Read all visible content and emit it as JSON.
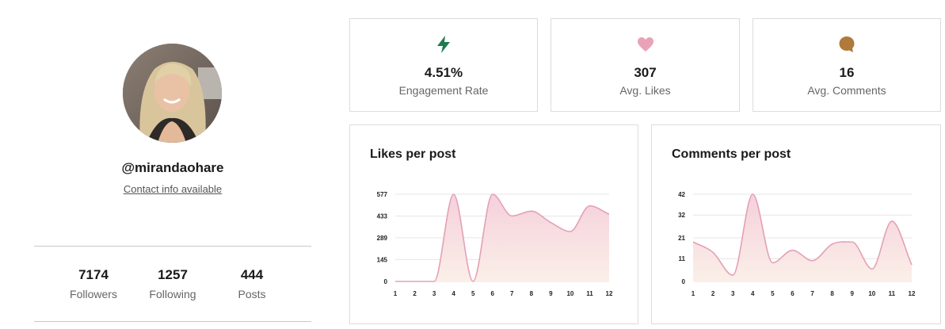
{
  "profile": {
    "handle": "@mirandaohare",
    "contact_link": "Contact info available",
    "stats": [
      {
        "value": "7174",
        "label": "Followers"
      },
      {
        "value": "1257",
        "label": "Following"
      },
      {
        "value": "444",
        "label": "Posts"
      }
    ]
  },
  "metrics": [
    {
      "value": "4.51%",
      "label": "Engagement Rate",
      "icon": "lightning-icon",
      "color": "#1e7a4f"
    },
    {
      "value": "307",
      "label": "Avg. Likes",
      "icon": "heart-icon",
      "color": "#e8a3b8"
    },
    {
      "value": "16",
      "label": "Avg. Comments",
      "icon": "comment-bubble-icon",
      "color": "#b07a3a"
    }
  ],
  "colors": {
    "series_line": "#e3a1b5",
    "series_fill_top": "#f5d0dc",
    "series_fill_bottom": "#fbefe8"
  },
  "chart_data": [
    {
      "type": "area",
      "title": "Likes per post",
      "x": [
        1,
        2,
        3,
        4,
        5,
        6,
        7,
        8,
        9,
        10,
        11,
        12
      ],
      "values": [
        0,
        0,
        0,
        577,
        0,
        577,
        433,
        465,
        390,
        330,
        500,
        445
      ],
      "yticks": [
        0,
        145,
        289,
        433,
        577
      ],
      "ylim": [
        0,
        577
      ],
      "grid": true
    },
    {
      "type": "area",
      "title": "Comments per post",
      "x": [
        1,
        2,
        3,
        4,
        5,
        6,
        7,
        8,
        9,
        10,
        11,
        12
      ],
      "values": [
        19,
        14,
        3,
        42,
        9,
        15,
        10,
        18,
        19,
        6,
        29,
        8
      ],
      "yticks": [
        0,
        11,
        21,
        32,
        42
      ],
      "ylim": [
        0,
        42
      ],
      "grid": true
    }
  ]
}
